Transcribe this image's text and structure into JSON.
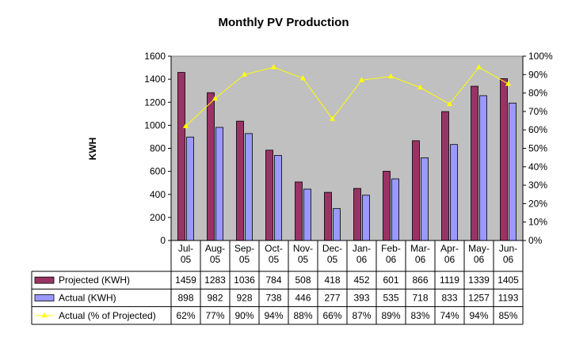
{
  "chart_data": {
    "type": "bar",
    "title": "Monthly PV Production",
    "ylabel": "KWH",
    "ylim": [
      0,
      1600
    ],
    "y_ticks": [
      "0",
      "200",
      "400",
      "600",
      "800",
      "1000",
      "1200",
      "1400",
      "1600"
    ],
    "y2lim": [
      0,
      100
    ],
    "y2_ticks": [
      "0%",
      "10%",
      "20%",
      "30%",
      "40%",
      "50%",
      "60%",
      "70%",
      "80%",
      "90%",
      "100%"
    ],
    "categories": [
      [
        "Jul-",
        "05"
      ],
      [
        "Aug-",
        "05"
      ],
      [
        "Sep-",
        "05"
      ],
      [
        "Oct-",
        "05"
      ],
      [
        "Nov-",
        "05"
      ],
      [
        "Dec-",
        "05"
      ],
      [
        "Jan-",
        "06"
      ],
      [
        "Feb-",
        "06"
      ],
      [
        "Mar-",
        "06"
      ],
      [
        "Apr-",
        "06"
      ],
      [
        "May-",
        "06"
      ],
      [
        "Jun-",
        "06"
      ]
    ],
    "series": [
      {
        "name": "Projected (KWH)",
        "kind": "bar",
        "axis": "left",
        "color": "#993366",
        "values": [
          1459,
          1283,
          1036,
          784,
          508,
          418,
          452,
          601,
          866,
          1119,
          1339,
          1405
        ],
        "labels": [
          "1459",
          "1283",
          "1036",
          "784",
          "508",
          "418",
          "452",
          "601",
          "866",
          "1119",
          "1339",
          "1405"
        ]
      },
      {
        "name": "Actual (KWH)",
        "kind": "bar",
        "axis": "left",
        "color": "#9999ff",
        "values": [
          898,
          982,
          928,
          738,
          446,
          277,
          393,
          535,
          718,
          833,
          1257,
          1193
        ],
        "labels": [
          "898",
          "982",
          "928",
          "738",
          "446",
          "277",
          "393",
          "535",
          "718",
          "833",
          "1257",
          "1193"
        ]
      },
      {
        "name": "Actual (% of Projected)",
        "kind": "line",
        "axis": "right",
        "color": "#ffff00",
        "values": [
          62,
          77,
          90,
          94,
          88,
          66,
          87,
          89,
          83,
          74,
          94,
          85
        ],
        "labels": [
          "62%",
          "77%",
          "90%",
          "94%",
          "88%",
          "66%",
          "87%",
          "89%",
          "83%",
          "74%",
          "94%",
          "85%"
        ]
      }
    ],
    "plot_background": "#c0c0c0",
    "grid": false,
    "legend": "data table below chart"
  }
}
